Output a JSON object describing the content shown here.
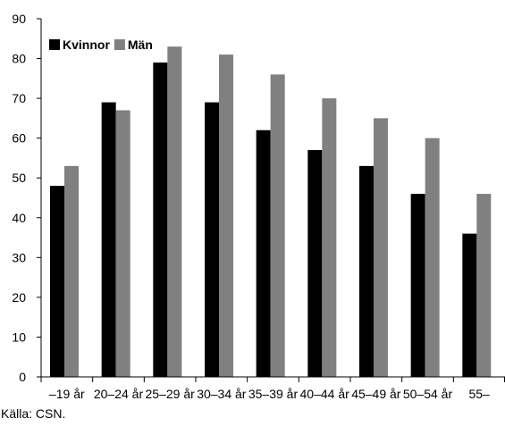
{
  "chart_data": {
    "type": "bar",
    "categories": [
      "–19 år",
      "20–24 år",
      "25–29 år",
      "30–34 år",
      "35–39 år",
      "40–44 år",
      "45–49 år",
      "50–54 år",
      "55–"
    ],
    "series": [
      {
        "name": "Kvinnor",
        "color": "#000000",
        "values": [
          48,
          69,
          79,
          69,
          62,
          57,
          53,
          46,
          36
        ]
      },
      {
        "name": "Män",
        "color": "#808080",
        "values": [
          53,
          67,
          83,
          81,
          76,
          70,
          65,
          60,
          46
        ]
      }
    ],
    "yticks": [
      0,
      10,
      20,
      30,
      40,
      50,
      60,
      70,
      80,
      90
    ],
    "ylim": [
      0,
      90
    ],
    "grid": false,
    "legend_position": "top-left"
  },
  "source": "Källa: CSN."
}
